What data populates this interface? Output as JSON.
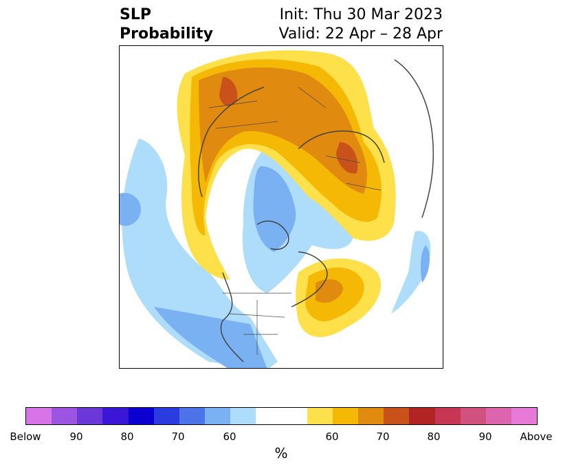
{
  "title": {
    "left_line1": "SLP",
    "left_line2": "Probability",
    "right_line1": "Init: Thu 30 Mar 2023",
    "right_line2": "Valid: 22 Apr – 28 Apr"
  },
  "colorbar": {
    "unit": "%",
    "colors": [
      "#d674e8",
      "#9b55e0",
      "#6a38d8",
      "#3a16d6",
      "#0a00cf",
      "#2a3be0",
      "#4d73e8",
      "#79b1f2",
      "#aedcfb",
      "#ffffff",
      "#ffffff",
      "#fde04a",
      "#f5b805",
      "#e08a10",
      "#c8521a",
      "#b22323",
      "#c73754",
      "#d2527f",
      "#dc65ad",
      "#e67ad6"
    ],
    "ticks": [
      "Below",
      "90",
      "80",
      "70",
      "60",
      "60",
      "70",
      "80",
      "90",
      "Above"
    ]
  },
  "map_colors": {
    "blue_light": "#aedcfb",
    "blue_mid": "#79b1f2",
    "yellow": "#fde04a",
    "gold": "#f5b805",
    "orange": "#e08a10",
    "dark_orange": "#c8521a",
    "coast": "#444444"
  }
}
